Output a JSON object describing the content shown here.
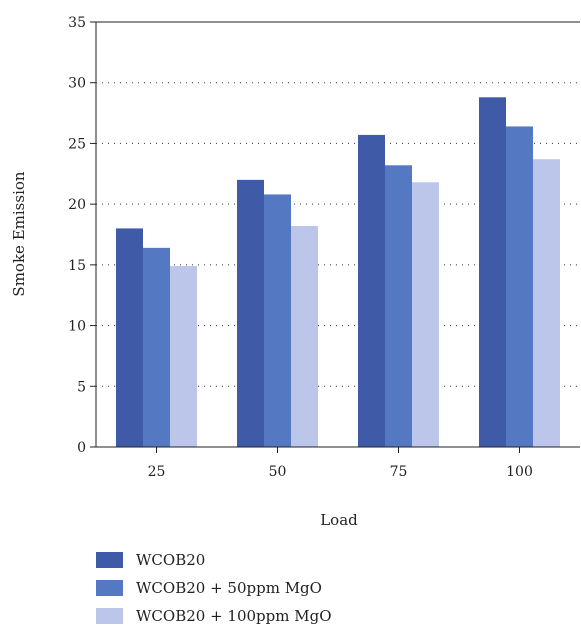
{
  "chart_data": {
    "type": "bar",
    "title": "",
    "xlabel": "Load",
    "ylabel": "Smoke Emission",
    "categories": [
      "25",
      "50",
      "75",
      "100"
    ],
    "ylim": [
      0,
      35
    ],
    "yticks": [
      0,
      5,
      10,
      15,
      20,
      25,
      30,
      35
    ],
    "grid": "horizontal dotted",
    "legend_position": "bottom-left",
    "series": [
      {
        "name": "WCOB20",
        "values": [
          18.0,
          22.0,
          25.7,
          28.8
        ],
        "color": "#3f5ba8"
      },
      {
        "name": "WCOB20 + 50ppm MgO",
        "values": [
          16.4,
          20.8,
          23.2,
          26.4
        ],
        "color": "#5578c2"
      },
      {
        "name": "WCOB20 + 100ppm MgO",
        "values": [
          14.9,
          18.2,
          21.8,
          23.7
        ],
        "color": "#bcc5ea"
      }
    ]
  }
}
